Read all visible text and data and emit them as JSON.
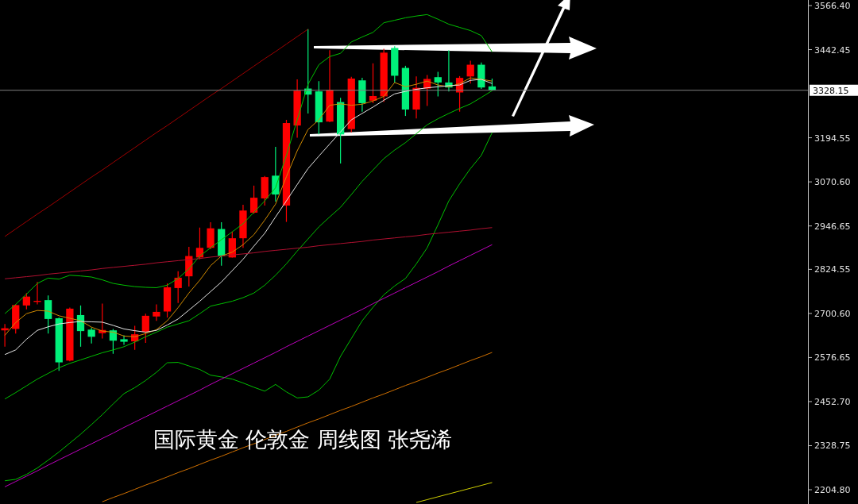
{
  "chart_data": {
    "type": "candlestick",
    "categories": [
      null,
      null,
      null,
      null,
      null,
      null,
      null,
      null,
      null,
      null,
      null,
      null,
      null,
      null,
      null,
      null,
      null,
      null,
      null,
      null,
      null,
      null,
      null,
      null,
      null,
      null,
      null,
      null,
      null,
      null,
      null,
      null,
      null,
      null,
      null,
      null,
      null,
      null,
      null,
      null,
      null,
      null,
      null,
      null,
      null,
      null
    ],
    "ohlc": [
      [
        2653,
        2671,
        2607,
        2659
      ],
      [
        2657,
        2726,
        2644,
        2724
      ],
      [
        2723,
        2758,
        2712,
        2748
      ],
      [
        2733,
        2789,
        2726,
        2736
      ],
      [
        2738,
        2751,
        2644,
        2685
      ],
      [
        2687,
        2689,
        2539,
        2563
      ],
      [
        2568,
        2717,
        2566,
        2714
      ],
      [
        2696,
        2723,
        2607,
        2651
      ],
      [
        2655,
        2660,
        2616,
        2635
      ],
      [
        2645,
        2728,
        2630,
        2654
      ],
      [
        2653,
        2657,
        2587,
        2624
      ],
      [
        2628,
        2639,
        2612,
        2621
      ],
      [
        2622,
        2666,
        2598,
        2642
      ],
      [
        2649,
        2700,
        2618,
        2694
      ],
      [
        2692,
        2726,
        2680,
        2705
      ],
      [
        2706,
        2785,
        2689,
        2774
      ],
      [
        2772,
        2819,
        2730,
        2801
      ],
      [
        2805,
        2888,
        2776,
        2862
      ],
      [
        2858,
        2942,
        2853,
        2885
      ],
      [
        2885,
        2957,
        2881,
        2940
      ],
      [
        2938,
        2957,
        2835,
        2862
      ],
      [
        2858,
        2931,
        2858,
        2912
      ],
      [
        2912,
        3006,
        2885,
        2990
      ],
      [
        2984,
        3060,
        2981,
        3026
      ],
      [
        3024,
        3087,
        3004,
        3084
      ],
      [
        3088,
        3169,
        3015,
        3035
      ],
      [
        3004,
        3245,
        2958,
        3236
      ],
      [
        3229,
        3359,
        3195,
        3327
      ],
      [
        3333,
        3500,
        3263,
        3316
      ],
      [
        3325,
        3354,
        3204,
        3238
      ],
      [
        3240,
        3441,
        3238,
        3329
      ],
      [
        3295,
        3307,
        3122,
        3204
      ],
      [
        3219,
        3366,
        3210,
        3361
      ],
      [
        3356,
        3363,
        3268,
        3292
      ],
      [
        3299,
        3404,
        3292,
        3312
      ],
      [
        3311,
        3445,
        3295,
        3434
      ],
      [
        3447,
        3452,
        3350,
        3369
      ],
      [
        3391,
        3397,
        3256,
        3274
      ],
      [
        3274,
        3367,
        3249,
        3335
      ],
      [
        3333,
        3371,
        3284,
        3360
      ],
      [
        3365,
        3380,
        3311,
        3350
      ],
      [
        3350,
        3441,
        3325,
        3336
      ],
      [
        3322,
        3368,
        3268,
        3363
      ],
      [
        3367,
        3411,
        3347,
        3400
      ],
      [
        3400,
        3406,
        3332,
        3336
      ],
      [
        3339,
        3361,
        3327,
        3328
      ]
    ],
    "colors": [
      "#ff0000",
      "#ff0000",
      "#ff0000",
      "#ff0000",
      "#00f07a",
      "#00f07a",
      "#ff0000",
      "#00f07a",
      "#00f07a",
      "#ff0000",
      "#00f07a",
      "#00f07a",
      "#ff0000",
      "#ff0000",
      "#ff0000",
      "#ff0000",
      "#ff0000",
      "#ff0000",
      "#ff0000",
      "#ff0000",
      "#00f07a",
      "#ff0000",
      "#ff0000",
      "#ff0000",
      "#ff0000",
      "#00f07a",
      "#ff0000",
      "#ff0000",
      "#00f07a",
      "#00f07a",
      "#ff0000",
      "#00f07a",
      "#ff0000",
      "#00f07a",
      "#ff0000",
      "#ff0000",
      "#00f07a",
      "#00f07a",
      "#ff0000",
      "#ff0000",
      "#00f07a",
      "#00f07a",
      "#ff0000",
      "#ff0000",
      "#00f07a",
      "#00f07a"
    ],
    "series": [
      {
        "type": "line",
        "color": "#d08a00",
        "values": [
          2639,
          2675,
          2700,
          2709,
          2707,
          2694,
          2687,
          2680,
          2662,
          2651,
          2648,
          2637,
          2635,
          2644,
          2655,
          2680,
          2717,
          2758,
          2794,
          2835,
          2862,
          2873,
          2894,
          2922,
          2963,
          3008,
          3085,
          3158,
          3218,
          3245,
          3286,
          3290,
          3286,
          3289,
          3298,
          3311,
          3350,
          3338,
          3345,
          3354,
          3343,
          3338,
          3347,
          3363,
          3359,
          3354
        ]
      },
      {
        "type": "line",
        "color": "#e6e6e6",
        "values": [
          2585,
          2598,
          2628,
          2653,
          2663,
          2671,
          2675,
          2678,
          2677,
          2676,
          2667,
          2657,
          2652,
          2648,
          2653,
          2668,
          2685,
          2710,
          2735,
          2762,
          2789,
          2821,
          2853,
          2890,
          2926,
          2972,
          3017,
          3063,
          3108,
          3143,
          3177,
          3211,
          3245,
          3263,
          3281,
          3300,
          3318,
          3325,
          3331,
          3335,
          3338,
          3341,
          3343,
          3356,
          3359,
          3347
        ]
      },
      {
        "type": "line",
        "color": "#00c000",
        "values": [
          2700,
          2726,
          2755,
          2785,
          2800,
          2797,
          2808,
          2806,
          2803,
          2795,
          2785,
          2780,
          2776,
          2774,
          2773,
          2780,
          2799,
          2826,
          2862,
          2885,
          2908,
          2930,
          2953,
          2985,
          3017,
          3054,
          3145,
          3245,
          3345,
          3400,
          3423,
          3432,
          3464,
          3478,
          3491,
          3518,
          3525,
          3532,
          3537,
          3541,
          3528,
          3514,
          3505,
          3496,
          3482,
          3436
        ]
      },
      {
        "type": "line",
        "color": "#00c000",
        "values": [
          2460,
          2478,
          2497,
          2516,
          2532,
          2548,
          2560,
          2570,
          2580,
          2590,
          2598,
          2607,
          2620,
          2635,
          2648,
          2662,
          2671,
          2680,
          2700,
          2721,
          2728,
          2735,
          2745,
          2758,
          2780,
          2808,
          2840,
          2876,
          2910,
          2944,
          2972,
          2999,
          3035,
          3072,
          3104,
          3136,
          3160,
          3181,
          3206,
          3231,
          3248,
          3263,
          3277,
          3290,
          3308,
          3327
        ]
      },
      {
        "type": "line",
        "color": "#00c000",
        "values": [
          2230,
          2234,
          2248,
          2266,
          2288,
          2311,
          2336,
          2361,
          2388,
          2416,
          2446,
          2475,
          2492,
          2512,
          2535,
          2562,
          2563,
          2553,
          2543,
          2527,
          2522,
          2516,
          2505,
          2493,
          2482,
          2501,
          2480,
          2463,
          2466,
          2485,
          2516,
          2580,
          2630,
          2680,
          2718,
          2753,
          2778,
          2799,
          2840,
          2885,
          2950,
          3017,
          3065,
          3108,
          3145,
          3209
        ]
      },
      {
        "type": "line",
        "color": "#c000c0",
        "values": [
          2213,
          2228,
          2243,
          2258,
          2274,
          2289,
          2304,
          2319,
          2334,
          2349,
          2364,
          2380,
          2395,
          2410,
          2425,
          2440,
          2455,
          2470,
          2485,
          2501,
          2516,
          2531,
          2546,
          2561,
          2576,
          2591,
          2607,
          2622,
          2637,
          2652,
          2667,
          2682,
          2697,
          2712,
          2728,
          2743,
          2758,
          2773,
          2788,
          2803,
          2818,
          2834,
          2849,
          2864,
          2879,
          2894
        ]
      },
      {
        "type": "line",
        "color": "#d07000",
        "values": [
          null,
          null,
          null,
          null,
          null,
          null,
          null,
          null,
          null,
          2171,
          2183,
          2194,
          2206,
          2218,
          2229,
          2241,
          2253,
          2264,
          2276,
          2288,
          2299,
          2311,
          2323,
          2334,
          2346,
          2358,
          2369,
          2381,
          2393,
          2404,
          2416,
          2428,
          2439,
          2451,
          2463,
          2474,
          2486,
          2498,
          2509,
          2521,
          2533,
          2544,
          2556,
          2568,
          2579,
          2591
        ]
      },
      {
        "type": "line",
        "color": "#d0d000",
        "values": [
          null,
          null,
          null,
          null,
          null,
          null,
          null,
          null,
          null,
          null,
          null,
          null,
          null,
          null,
          null,
          null,
          null,
          null,
          null,
          null,
          null,
          null,
          null,
          null,
          null,
          null,
          null,
          null,
          null,
          null,
          null,
          null,
          null,
          null,
          null,
          null,
          null,
          null,
          2169,
          2177,
          2185,
          2193,
          2201,
          2209,
          2217,
          2225
        ]
      },
      {
        "type": "line",
        "color": "#a00000",
        "values": [
          2917,
          2938,
          2959,
          2980,
          3000,
          3021,
          3042,
          3063,
          3084,
          3104,
          3125,
          3146,
          3167,
          3188,
          3209,
          3229,
          3250,
          3271,
          3292,
          3313,
          3333,
          3354,
          3375,
          3396,
          3417,
          3437,
          3458,
          3479,
          3500,
          null,
          null,
          null,
          null,
          null,
          null,
          null,
          null,
          null,
          null,
          null,
          null,
          null,
          null,
          null,
          null,
          null
        ]
      },
      {
        "type": "line",
        "color": "#b01030",
        "values": [
          2798,
          2801,
          2804,
          2807,
          2811,
          2814,
          2817,
          2820,
          2823,
          2827,
          2830,
          2833,
          2836,
          2839,
          2843,
          2846,
          2849,
          2852,
          2855,
          2859,
          2862,
          2865,
          2868,
          2871,
          2875,
          2878,
          2881,
          2884,
          2887,
          2891,
          2894,
          2897,
          2900,
          2903,
          2907,
          2910,
          2913,
          2916,
          2919,
          2923,
          2926,
          2929,
          2932,
          2935,
          2939,
          2942
        ]
      }
    ],
    "ylim": [
      2164.7,
      3582.0
    ],
    "yticks": [
      {
        "value": 2204.8,
        "label": "2204.80"
      },
      {
        "value": 2328.75,
        "label": "2328.75"
      },
      {
        "value": 2452.7,
        "label": "2452.70"
      },
      {
        "value": 2576.65,
        "label": "2576.65"
      },
      {
        "value": 2700.6,
        "label": "2700.60"
      },
      {
        "value": 2824.55,
        "label": "2824.55"
      },
      {
        "value": 2946.65,
        "label": "2946.65"
      },
      {
        "value": 3070.6,
        "label": "3070.60"
      },
      {
        "value": 3194.55,
        "label": "3194.55"
      },
      {
        "value": 3442.45,
        "label": "3442.45"
      },
      {
        "value": 3566.4,
        "label": "3566.40"
      }
    ],
    "ref_lines": [
      {
        "axis": "y",
        "value": 3328.15,
        "label": "3328.15",
        "color": "#808080"
      }
    ],
    "annotations": [
      "国际黄金 伦敦金 周线图  张尧浠"
    ],
    "tick_labels": "y"
  }
}
